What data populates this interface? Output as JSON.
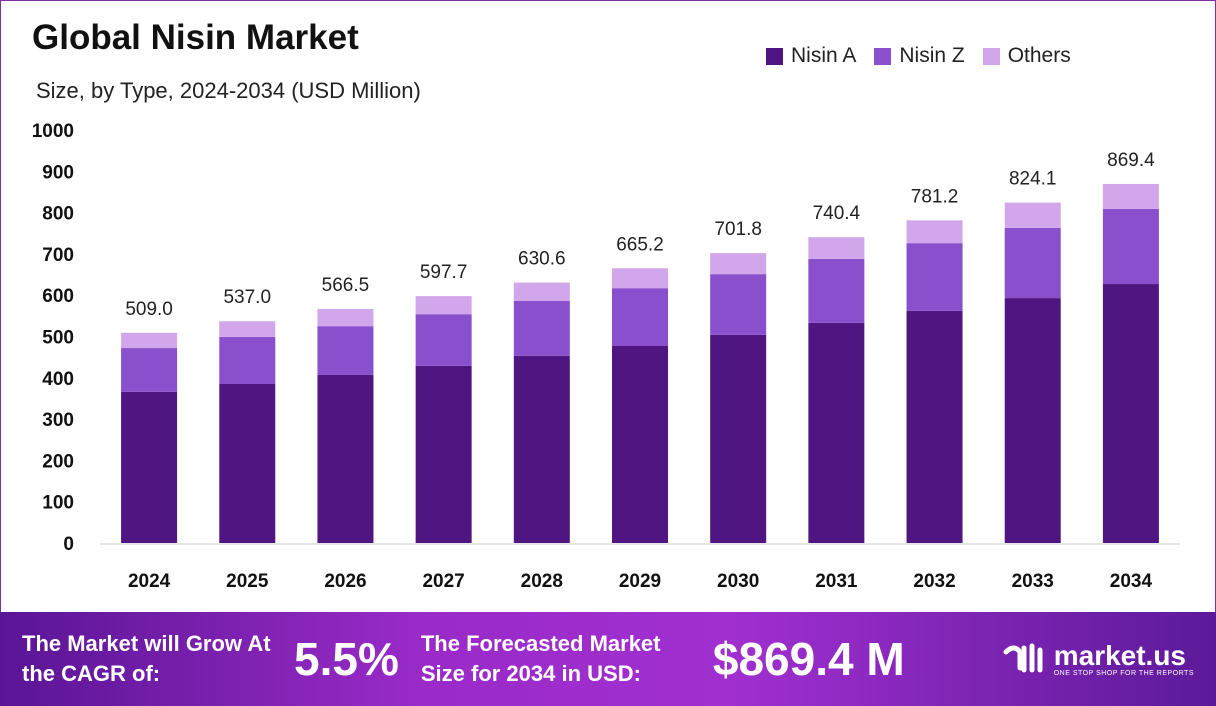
{
  "chart_data": {
    "type": "bar",
    "stacked": true,
    "title": "Global Nisin Market",
    "subtitle": "Size, by Type, 2024-2034 (USD Million)",
    "xlabel": "",
    "ylabel": "",
    "ylim": [
      0,
      1000
    ],
    "yticks": [
      0,
      100,
      200,
      300,
      400,
      500,
      600,
      700,
      800,
      900,
      1000
    ],
    "grid": false,
    "legend_position": "top-right",
    "categories": [
      "2024",
      "2025",
      "2026",
      "2027",
      "2028",
      "2029",
      "2030",
      "2031",
      "2032",
      "2033",
      "2034"
    ],
    "totals": [
      "509.0",
      "537.0",
      "566.5",
      "597.7",
      "630.6",
      "665.2",
      "701.8",
      "740.4",
      "781.2",
      "824.1",
      "869.4"
    ],
    "series": [
      {
        "name": "Nisin A",
        "color": "#4f1682",
        "values": [
          366,
          385,
          407,
          429,
          453,
          477,
          504,
          533,
          562,
          593,
          627
        ]
      },
      {
        "name": "Nisin Z",
        "color": "#8a4fcc",
        "values": [
          106,
          114,
          118,
          125,
          133,
          140,
          147,
          155,
          164,
          170,
          182
        ]
      },
      {
        "name": "Others",
        "color": "#d1a6ea",
        "values": [
          37,
          38,
          41.5,
          43.7,
          44.6,
          48.2,
          50.8,
          52.4,
          55.2,
          61.1,
          60.4
        ]
      }
    ]
  },
  "banner": {
    "cagr_label": "The Market will Grow At the CAGR of:",
    "cagr_value": "5.5%",
    "forecast_label": "The Forecasted Market Size for 2034 in USD:",
    "forecast_value": "$869.4 M",
    "brand": "market.us",
    "tagline": "ONE STOP SHOP FOR THE REPORTS"
  }
}
